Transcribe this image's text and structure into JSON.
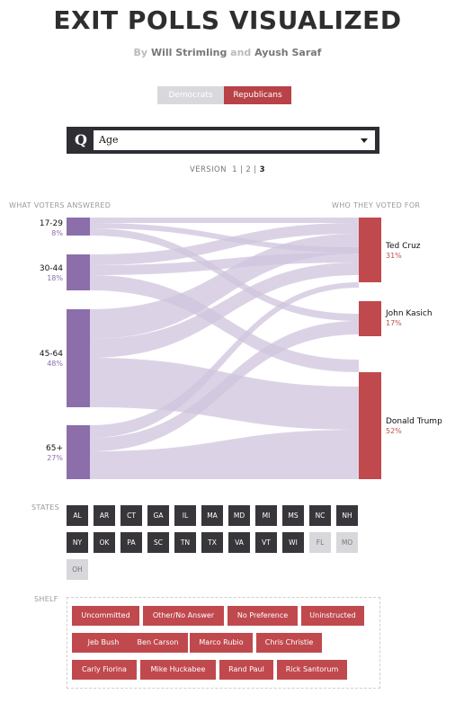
{
  "title": "EXIT POLLS VISUALIZED",
  "byline": {
    "by": "By",
    "author1": "Will Strimling",
    "and": "and",
    "author2": "Ayush Saraf"
  },
  "party_toggle": {
    "democrats": "Democrats",
    "republicans": "Republicans",
    "selected": "Republicans"
  },
  "question": {
    "letter": "Q",
    "selected": "Age"
  },
  "version": {
    "label": "VERSION",
    "v1": "1",
    "sep1": "|",
    "v2": "2",
    "sep2": "|",
    "v3": "3",
    "current": "3"
  },
  "sankey": {
    "left_header": "WHAT VOTERS ANSWERED",
    "right_header": "WHO THEY VOTED FOR",
    "answers": [
      {
        "label": "17-29",
        "pct": "8%"
      },
      {
        "label": "30-44",
        "pct": "18%"
      },
      {
        "label": "45-64",
        "pct": "48%"
      },
      {
        "label": "65+",
        "pct": "27%"
      }
    ],
    "candidates": [
      {
        "label": "Ted Cruz",
        "pct": "31%"
      },
      {
        "label": "John Kasich",
        "pct": "17%"
      },
      {
        "label": "Donald Trump",
        "pct": "52%"
      }
    ],
    "colors": {
      "answer_bar": "#8c6eab",
      "candidate_bar": "#c0494e",
      "flow": "#cfc4dc"
    }
  },
  "states": {
    "label": "STATES",
    "items": [
      {
        "code": "AL",
        "active": true
      },
      {
        "code": "AR",
        "active": true
      },
      {
        "code": "CT",
        "active": true
      },
      {
        "code": "GA",
        "active": true
      },
      {
        "code": "IL",
        "active": true
      },
      {
        "code": "MA",
        "active": true
      },
      {
        "code": "MD",
        "active": true
      },
      {
        "code": "MI",
        "active": true
      },
      {
        "code": "MS",
        "active": true
      },
      {
        "code": "NC",
        "active": true
      },
      {
        "code": "NH",
        "active": true
      },
      {
        "code": "NY",
        "active": true
      },
      {
        "code": "OK",
        "active": true
      },
      {
        "code": "PA",
        "active": true
      },
      {
        "code": "SC",
        "active": true
      },
      {
        "code": "TN",
        "active": true
      },
      {
        "code": "TX",
        "active": true
      },
      {
        "code": "VA",
        "active": true
      },
      {
        "code": "VT",
        "active": true
      },
      {
        "code": "WI",
        "active": true
      },
      {
        "code": "FL",
        "active": false
      },
      {
        "code": "MO",
        "active": false
      },
      {
        "code": "OH",
        "active": false
      }
    ]
  },
  "shelf": {
    "label": "SHELF",
    "items": [
      "Uncommitted",
      "Other/No Answer",
      "No Preference",
      "Uninstructed",
      "Jeb Bush",
      "Ben Carson",
      "Marco Rubio",
      "Chris Christie",
      "Carly Fiorina",
      "Mike Huckabee",
      "Rand Paul",
      "Rick Santorum"
    ]
  }
}
